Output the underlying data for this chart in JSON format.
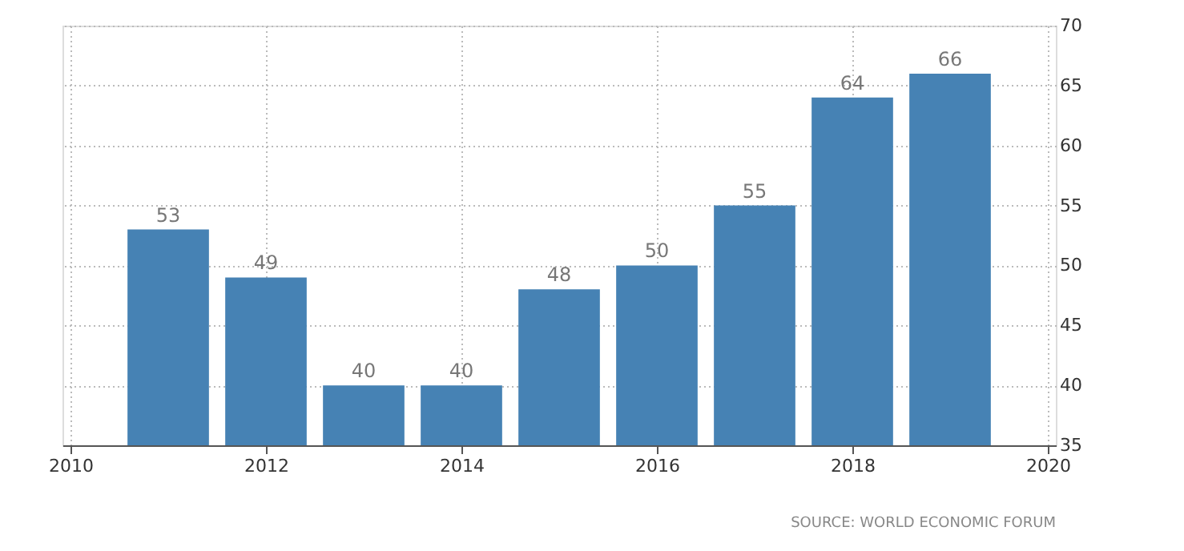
{
  "chart_data": {
    "type": "bar",
    "x": [
      2011,
      2012,
      2013,
      2014,
      2015,
      2016,
      2017,
      2018,
      2019
    ],
    "values": [
      53,
      49,
      40,
      40,
      48,
      50,
      55,
      64,
      66
    ],
    "color": "#4682b4",
    "xlim": [
      2010,
      2020
    ],
    "xticks": [
      2010,
      2012,
      2014,
      2016,
      2018,
      2020
    ],
    "ylim": [
      35,
      70
    ],
    "yticks": [
      35,
      40,
      45,
      50,
      55,
      60,
      65,
      70
    ],
    "grid": true,
    "data_labels": true,
    "annotations": [
      "SOURCE: WORLD ECONOMIC FORUM"
    ]
  }
}
